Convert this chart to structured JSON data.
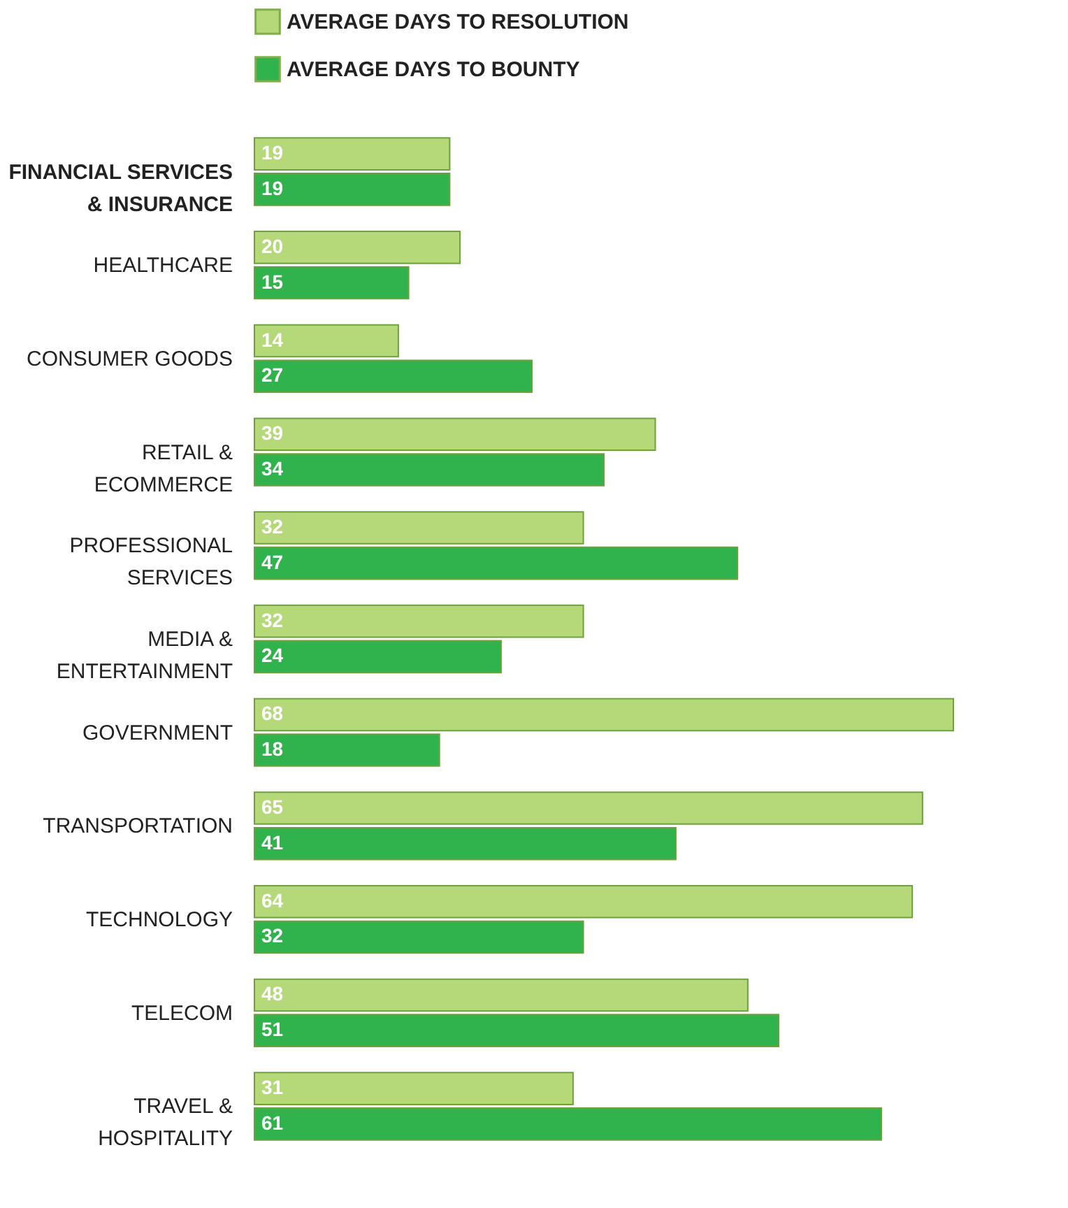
{
  "chart_data": {
    "type": "bar",
    "orientation": "horizontal",
    "categories": [
      "FINANCIAL SERVICES\n& INSURANCE",
      "HEALTHCARE",
      "CONSUMER GOODS",
      "RETAIL &\nECOMMERCE",
      "PROFESSIONAL\nSERVICES",
      "MEDIA &\nENTERTAINMENT",
      "GOVERNMENT",
      "TRANSPORTATION",
      "TECHNOLOGY",
      "TELECOM",
      "TRAVEL &\nHOSPITALITY"
    ],
    "series": [
      {
        "name": "AVERAGE DAYS TO RESOLUTION",
        "color": "#b5d878",
        "values": [
          19,
          20,
          14,
          39,
          32,
          32,
          68,
          65,
          64,
          48,
          31
        ]
      },
      {
        "name": "AVERAGE DAYS TO BOUNTY",
        "color": "#30b24c",
        "values": [
          19,
          15,
          27,
          34,
          47,
          24,
          18,
          41,
          32,
          51,
          61
        ]
      }
    ],
    "data_labels": true,
    "legend": "top",
    "grid": false
  }
}
